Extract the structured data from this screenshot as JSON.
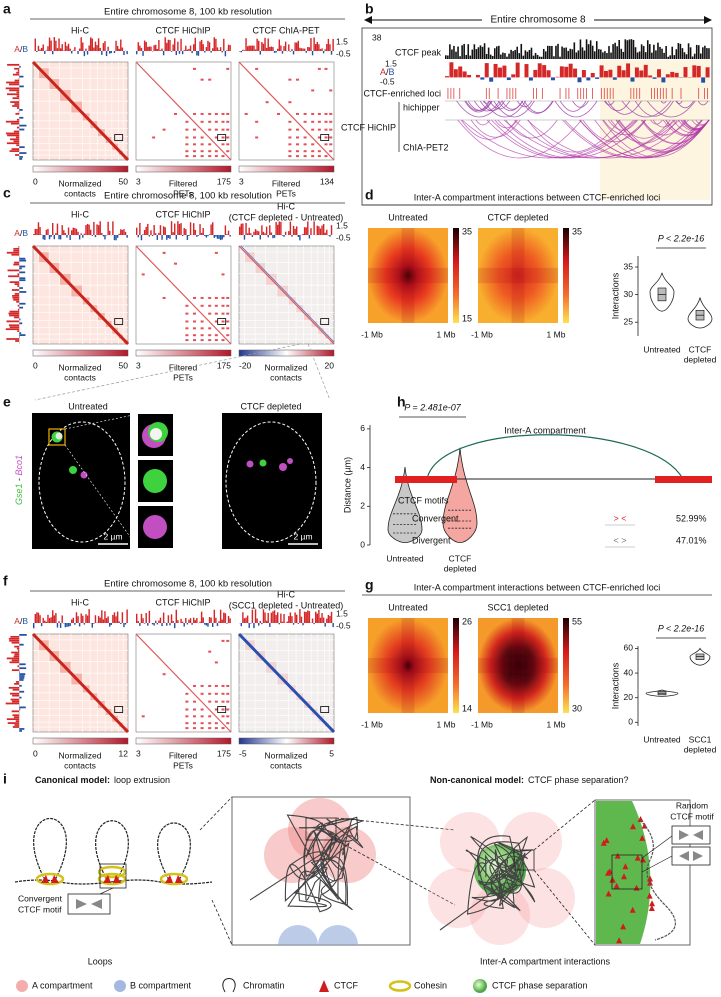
{
  "a": {
    "label": "a",
    "title": "Entire chromosome 8, 100 kb resolution",
    "maps": [
      [
        "Hi-C"
      ],
      [
        "CTCF HiChIP"
      ],
      [
        "CTCF ChIA-PET"
      ]
    ],
    "track_max": 1.5,
    "track_min": -0.5,
    "ab": [
      "A",
      "/",
      "B"
    ],
    "scales": [
      {
        "min": 0,
        "max": 50,
        "label": [
          "Normalized",
          "contacts"
        ]
      },
      {
        "min": 3,
        "max": 175,
        "label": [
          "Filtered",
          "PETs"
        ]
      },
      {
        "min": 3,
        "max": 134,
        "label": [
          "Filtered",
          "PETs"
        ]
      }
    ]
  },
  "b": {
    "label": "b",
    "title": "Entire chromosome 8",
    "peak_max": 38,
    "peak_label": "CTCF peak",
    "track_max": 1.5,
    "ab": [
      "A",
      "/",
      "B"
    ],
    "track_min": -0.5,
    "loci": "CTCF-enriched loci",
    "hichip": "CTCF HiChIP",
    "methods": [
      "hichipper",
      "ChIA-PET2"
    ]
  },
  "c": {
    "label": "c",
    "title": "Entire chromosome 8, 100 kb resolution",
    "maps": [
      [
        "Hi-C"
      ],
      [
        "CTCF HiChIP"
      ],
      [
        "Hi-C",
        "(CTCF depleted - Untreated)"
      ]
    ],
    "track_max": 1.5,
    "track_min": -0.5,
    "ab": [
      "A",
      "/",
      "B"
    ],
    "scales": [
      {
        "min": 0,
        "max": 50,
        "label": [
          "Normalized",
          "contacts"
        ]
      },
      {
        "min": 3,
        "max": 175,
        "label": [
          "Filtered",
          "PETs"
        ]
      },
      {
        "min": -20,
        "max": 20,
        "label": [
          "Normalized",
          "contacts"
        ]
      }
    ]
  },
  "d": {
    "label": "d",
    "title": "Inter-A compartment interactions between CTCF-enriched loci",
    "maps": [
      "Untreated",
      "CTCF depleted"
    ],
    "scales": [
      {
        "max": 35,
        "min": 15
      },
      {
        "max": 35
      }
    ],
    "x_ends": [
      "-1 Mb",
      "1 Mb"
    ],
    "violin": {
      "p": "P < 2.2e-16",
      "ylabel": "Interactions",
      "ylim": [
        22.5,
        37
      ],
      "yticks": [
        25,
        30,
        35
      ],
      "categories": [
        [
          "Untreated"
        ],
        [
          "CTCF",
          "depleted"
        ]
      ]
    }
  },
  "e": {
    "label": "e",
    "conditions": [
      "Untreated",
      "CTCF depleted"
    ],
    "scale_bar": "2 µm",
    "probe": [
      "Gse1",
      " - ",
      "Bco1"
    ],
    "violin": {
      "p": "P = 2.481e-07",
      "ylabel": "Distance (µm)",
      "ylim": [
        0,
        6.2
      ],
      "yticks": [
        0,
        2,
        4,
        6
      ],
      "categories": [
        [
          "Untreated"
        ],
        [
          "CTCF",
          "depleted"
        ]
      ]
    }
  },
  "h": {
    "label": "h",
    "title": "Inter-A compartment",
    "motifs_label": "CTCF motifs",
    "rows": [
      {
        "name": "Convergent",
        "motif": "> <",
        "percent": "52.99%"
      },
      {
        "name": "Divergent",
        "motif": "< >",
        "percent": "47.01%"
      }
    ]
  },
  "f": {
    "label": "f",
    "title": "Entire chromosome 8, 100 kb resolution",
    "maps": [
      [
        "Hi-C"
      ],
      [
        "CTCF HiChIP"
      ],
      [
        "Hi-C",
        "(SCC1 depleted - Untreated)"
      ]
    ],
    "track_max": 1.5,
    "track_min": -0.5,
    "ab": [
      "A",
      "/",
      "B"
    ],
    "scales": [
      {
        "min": 0,
        "max": 12,
        "label": [
          "Normalized",
          "contacts"
        ]
      },
      {
        "min": 3,
        "max": 175,
        "label": [
          "Filtered",
          "PETs"
        ]
      },
      {
        "min": -5,
        "max": 5,
        "label": [
          "Normalized",
          "contacts"
        ]
      }
    ]
  },
  "g": {
    "label": "g",
    "title": "Inter-A compartment interactions between CTCF-enriched loci",
    "maps": [
      "Untreated",
      "SCC1 depleted"
    ],
    "scales": [
      {
        "max": 26,
        "min": 14
      },
      {
        "max": 55,
        "min": 30
      }
    ],
    "x_ends": [
      "-1 Mb",
      "1 Mb"
    ],
    "violin": {
      "p": "P < 2.2e-16",
      "ylabel": "Interactions",
      "ylim": [
        -3,
        62
      ],
      "yticks": [
        0,
        20,
        40,
        60
      ],
      "categories": [
        [
          "Untreated"
        ],
        [
          "SCC1",
          "depleted"
        ]
      ]
    }
  },
  "i": {
    "label": "i",
    "canonical": [
      "Canonical model:",
      "loop extrusion"
    ],
    "motif": [
      "Convergent",
      "CTCF motif"
    ],
    "loops": "Loops",
    "noncanonical": [
      "Non-canonical model:",
      "CTCF phase separation?"
    ],
    "random": [
      "Random",
      "CTCF motif"
    ],
    "inter": "Inter-A compartment interactions",
    "legend": [
      "A compartment",
      "B compartment",
      "Chromatin",
      "CTCF",
      "Cohesin",
      "CTCF phase separation"
    ]
  }
}
